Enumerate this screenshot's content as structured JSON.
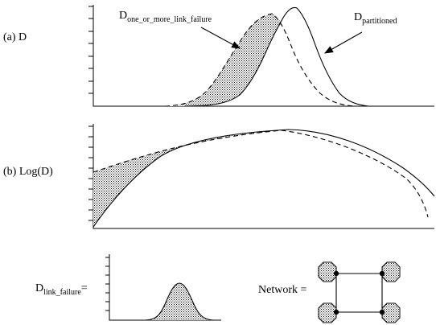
{
  "panel_a": {
    "label": "(a) D",
    "curve_one_or_more": {
      "prefix": "D",
      "subscript": "one_or_more_link_failure"
    },
    "curve_partitioned": {
      "prefix": "D",
      "subscript": "partitioned"
    }
  },
  "panel_b": {
    "label": "(b) Log(D)"
  },
  "link_failure": {
    "prefix": "D",
    "subscript": "link_failure",
    "suffix": "="
  },
  "network": {
    "label": "Network ="
  }
}
